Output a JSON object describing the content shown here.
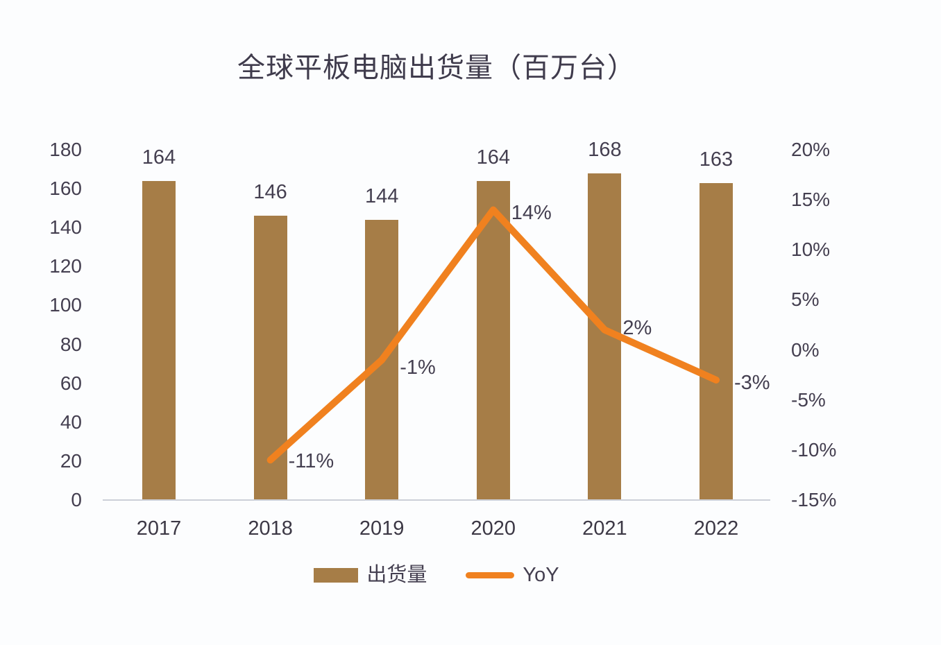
{
  "title": "全球平板电脑出货量（百万台）",
  "legend": {
    "items": [
      {
        "label": "出货量",
        "marker": "bar-swatch"
      },
      {
        "label": "YoY",
        "marker": "line-swatch"
      }
    ]
  },
  "colors": {
    "bar": "#a67d47",
    "line": "#f0811f",
    "text": "#443f50",
    "baseline": "#ccd0d8",
    "background": "#fcfdfe"
  },
  "chart_data": {
    "type": "bar",
    "subtype": "bar+line dual-axis combo",
    "title": "全球平板电脑出货量（百万台）",
    "categories": [
      "2017",
      "2018",
      "2019",
      "2020",
      "2021",
      "2022"
    ],
    "series": [
      {
        "name": "出货量",
        "type": "bar",
        "axis": "left",
        "color": "#a67d47",
        "values": [
          164,
          146,
          144,
          164,
          168,
          163
        ],
        "data_labels": [
          "164",
          "146",
          "144",
          "164",
          "168",
          "163"
        ]
      },
      {
        "name": "YoY",
        "type": "line",
        "axis": "right",
        "color": "#f0811f",
        "values_percent": [
          null,
          -11,
          -1,
          14,
          2,
          -3
        ],
        "data_labels": [
          null,
          "-11%",
          "-1%",
          "14%",
          "2%",
          "-3%"
        ]
      }
    ],
    "left_axis": {
      "min": 0,
      "max": 180,
      "step": 20,
      "tick_labels": [
        "180",
        "160",
        "140",
        "120",
        "100",
        "80",
        "60",
        "40",
        "20",
        "0"
      ]
    },
    "right_axis": {
      "min_percent": -15,
      "max_percent": 20,
      "step_percent": 5,
      "tick_labels": [
        "20%",
        "15%",
        "10%",
        "5%",
        "0%",
        "-5%",
        "-10%",
        "-15%"
      ]
    },
    "grid": false,
    "legend_position": "bottom"
  }
}
